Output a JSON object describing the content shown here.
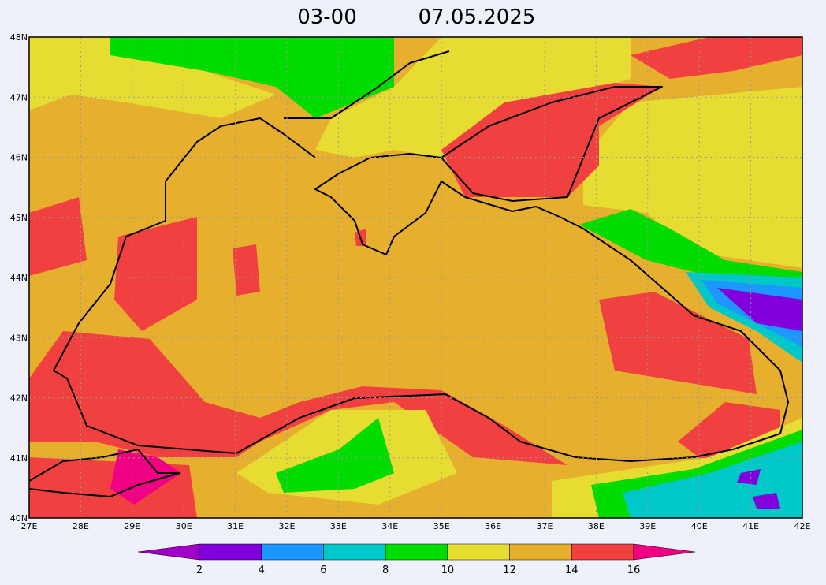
{
  "title": {
    "time": "03-00",
    "date": "07.05.2025"
  },
  "map": {
    "lat_labels": [
      "48N",
      "47N",
      "46N",
      "45N",
      "44N",
      "43N",
      "42N",
      "41N",
      "40N"
    ],
    "lon_labels": [
      "27E",
      "28E",
      "29E",
      "30E",
      "31E",
      "32E",
      "33E",
      "34E",
      "35E",
      "36E",
      "37E",
      "38E",
      "39E",
      "40E",
      "41E",
      "42E"
    ]
  },
  "colorbar": {
    "labels": [
      2,
      4,
      6,
      8,
      10,
      12,
      14,
      16
    ],
    "colors": [
      "#a000c8",
      "#8200dc",
      "#1e96ff",
      "#00c8c8",
      "#00dc00",
      "#e6dc32",
      "#e6af2d",
      "#f04040",
      "#f00082"
    ]
  }
}
